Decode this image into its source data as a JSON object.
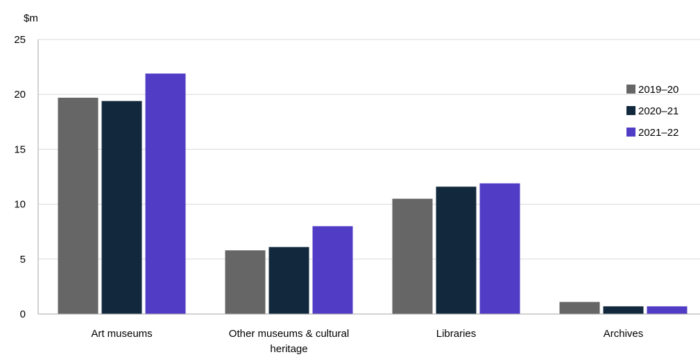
{
  "chart_data": {
    "type": "bar",
    "unit_label": "$m",
    "categories": [
      "Art museums",
      "Other museums & cultural heritage",
      "Libraries",
      "Archives"
    ],
    "series": [
      {
        "name": "2019–20",
        "color": "#666666",
        "values": [
          19.7,
          5.8,
          10.5,
          1.1
        ]
      },
      {
        "name": "2020–21",
        "color": "#12293D",
        "values": [
          19.4,
          6.1,
          11.6,
          0.7
        ]
      },
      {
        "name": "2021–22",
        "color": "#513CC6",
        "values": [
          21.9,
          8.0,
          11.9,
          0.7
        ]
      }
    ],
    "ylim": [
      0,
      25
    ],
    "yticks": [
      0,
      5,
      10,
      15,
      20,
      25
    ],
    "grid": true,
    "legend": "right"
  }
}
